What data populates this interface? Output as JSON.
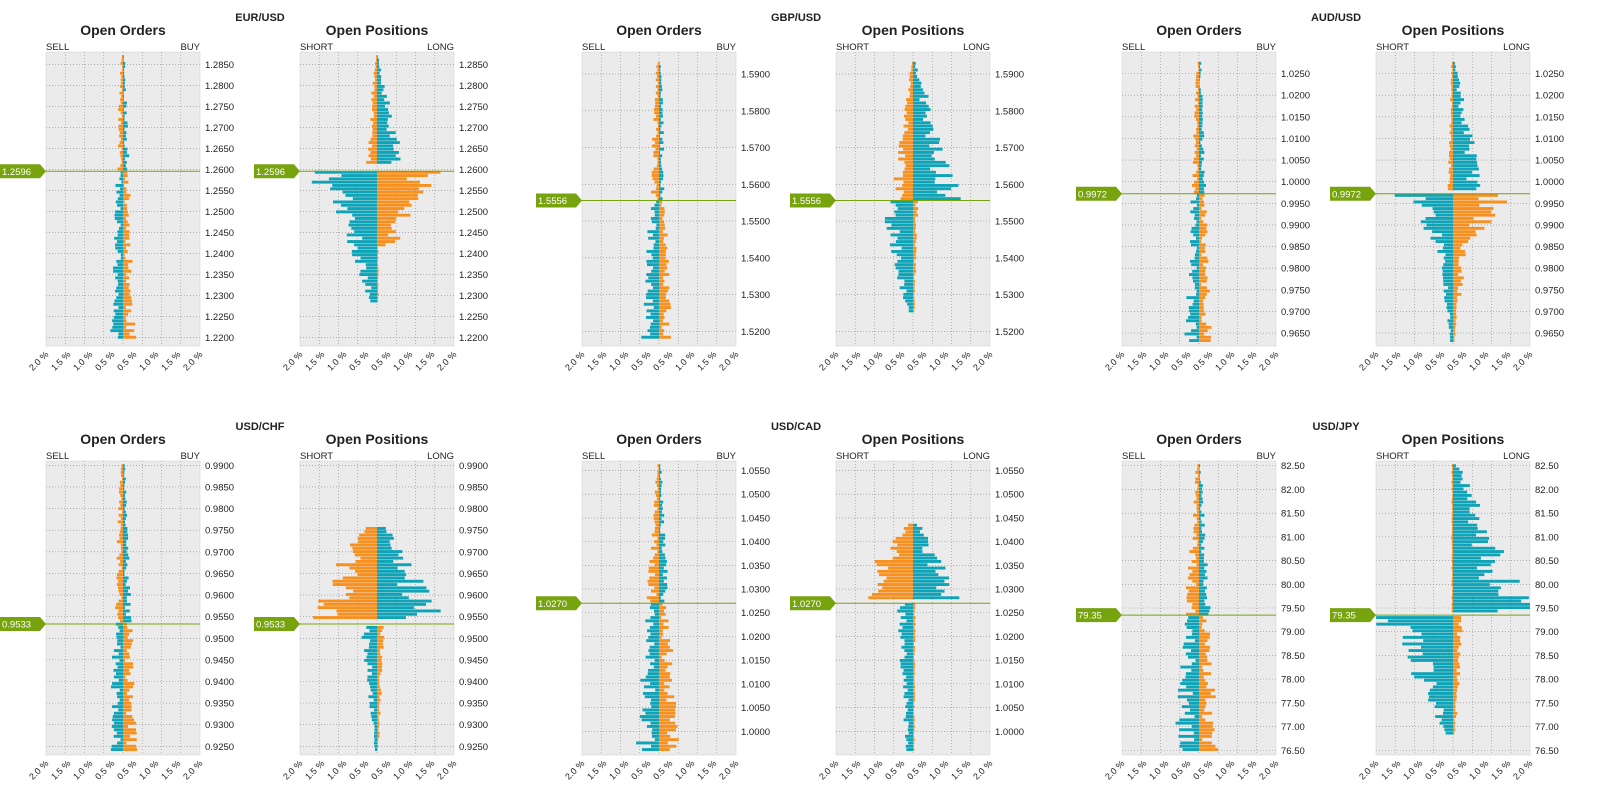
{
  "colors": {
    "sell": "#f7901e",
    "buy": "#0fa3b8",
    "current": "#76a30e",
    "plot_bg": "#ebebeb",
    "grid": "#8a8a8a"
  },
  "chart_data": [
    {
      "pair": "EUR/USD",
      "current_price": "1.2596",
      "type": "bar",
      "orders": {
        "title": "Open Orders",
        "left_label": "SELL",
        "right_label": "BUY"
      },
      "positions": {
        "title": "Open Positions",
        "left_label": "SHORT",
        "right_label": "LONG"
      },
      "xlim": [
        -2.0,
        2.0
      ],
      "x_ticks": [
        "2.0 %",
        "1.5 %",
        "1.0 %",
        "0.5 %",
        "0.5 %",
        "1.0 %",
        "1.5 %",
        "2.0 %"
      ],
      "y_ticks": [
        "1.2850",
        "1.2800",
        "1.2750",
        "1.2700",
        "1.2650",
        "1.2600",
        "1.2550",
        "1.2500",
        "1.2450",
        "1.2400",
        "1.2350",
        "1.2300",
        "1.2250",
        "1.2200"
      ],
      "ylim": [
        1.218,
        1.288
      ],
      "current": 1.2596,
      "order_sell": [
        [
          1.287,
          1.22,
          0.05,
          0.22
        ]
      ],
      "order_buy": [
        [
          1.287,
          1.22,
          0.04,
          0.22
        ]
      ],
      "pos_short": [
        [
          1.287,
          1.261,
          0.03,
          0.25
        ],
        [
          1.26,
          1.242,
          1.3,
          0.55
        ],
        [
          1.242,
          1.228,
          0.55,
          0.15
        ]
      ],
      "pos_long": [
        [
          1.287,
          1.261,
          0.03,
          0.55
        ],
        [
          1.26,
          1.242,
          1.2,
          0.35
        ],
        [
          1.242,
          1.228,
          0.03,
          0.03
        ]
      ]
    },
    {
      "pair": "GBP/USD",
      "current_price": "1.5556",
      "type": "bar",
      "orders": {
        "title": "Open Orders",
        "left_label": "SELL",
        "right_label": "BUY"
      },
      "positions": {
        "title": "Open Positions",
        "left_label": "SHORT",
        "right_label": "LONG"
      },
      "xlim": [
        -2.0,
        2.0
      ],
      "x_ticks": [
        "2.0 %",
        "1.5 %",
        "1.0 %",
        "0.5 %",
        "0.5 %",
        "1.0 %",
        "1.5 %",
        "2.0 %"
      ],
      "y_ticks": [
        "1.5900",
        "1.5800",
        "1.5700",
        "1.5600",
        "1.5500",
        "1.5400",
        "1.5300",
        "1.5200"
      ],
      "ylim": [
        1.516,
        1.596
      ],
      "current": 1.5556,
      "order_sell": [
        [
          1.593,
          1.518,
          0.05,
          0.3
        ]
      ],
      "order_buy": [
        [
          1.593,
          1.518,
          0.04,
          0.22
        ]
      ],
      "pos_short": [
        [
          1.593,
          1.556,
          0.03,
          0.4
        ],
        [
          1.556,
          1.525,
          0.6,
          0.15
        ]
      ],
      "pos_long": [
        [
          1.593,
          1.556,
          0.05,
          1.0
        ],
        [
          1.556,
          1.525,
          0.1,
          0.03
        ]
      ]
    },
    {
      "pair": "AUD/USD",
      "current_price": "0.9972",
      "type": "bar",
      "orders": {
        "title": "Open Orders",
        "left_label": "SELL",
        "right_label": "BUY"
      },
      "positions": {
        "title": "Open Positions",
        "left_label": "SHORT",
        "right_label": "LONG"
      },
      "xlim": [
        -2.0,
        2.0
      ],
      "x_ticks": [
        "2.0 %",
        "1.5 %",
        "1.0 %",
        "0.5 %",
        "0.5 %",
        "1.0 %",
        "1.5 %",
        "2.0 %"
      ],
      "y_ticks": [
        "1.0250",
        "1.0200",
        "1.0150",
        "1.0100",
        "1.0050",
        "1.0000",
        "0.9950",
        "0.9900",
        "0.9850",
        "0.9800",
        "0.9750",
        "0.9700",
        "0.9650"
      ],
      "ylim": [
        0.962,
        1.03
      ],
      "current": 0.9972,
      "order_sell": [
        [
          1.028,
          0.963,
          0.05,
          0.25
        ]
      ],
      "order_buy": [
        [
          1.028,
          0.963,
          0.04,
          0.22
        ]
      ],
      "pos_short": [
        [
          1.028,
          0.998,
          0.03,
          0.1
        ],
        [
          0.9975,
          0.985,
          1.2,
          0.3
        ],
        [
          0.985,
          0.963,
          0.3,
          0.05
        ]
      ],
      "pos_long": [
        [
          1.028,
          0.998,
          0.03,
          0.6
        ],
        [
          0.9975,
          0.985,
          1.3,
          0.3
        ],
        [
          0.985,
          0.963,
          0.3,
          0.03
        ]
      ]
    },
    {
      "pair": "USD/CHF",
      "current_price": "0.9533",
      "type": "bar",
      "orders": {
        "title": "Open Orders",
        "left_label": "SELL",
        "right_label": "BUY"
      },
      "positions": {
        "title": "Open Positions",
        "left_label": "SHORT",
        "right_label": "LONG"
      },
      "xlim": [
        -2.0,
        2.0
      ],
      "x_ticks": [
        "2.0 %",
        "1.5 %",
        "1.0 %",
        "0.5 %",
        "0.5 %",
        "1.0 %",
        "1.5 %",
        "2.0 %"
      ],
      "y_ticks": [
        "0.9900",
        "0.9850",
        "0.9800",
        "0.9750",
        "0.9700",
        "0.9650",
        "0.9600",
        "0.9550",
        "0.9500",
        "0.9450",
        "0.9400",
        "0.9350",
        "0.9300",
        "0.9250"
      ],
      "ylim": [
        0.923,
        0.991
      ],
      "current": 0.9533,
      "order_sell": [
        [
          0.99,
          0.924,
          0.05,
          0.25
        ]
      ],
      "order_buy": [
        [
          0.99,
          0.924,
          0.04,
          0.25
        ]
      ],
      "pos_short": [
        [
          0.976,
          0.954,
          0.3,
          1.4
        ],
        [
          0.953,
          0.924,
          0.3,
          0.05
        ]
      ],
      "pos_long": [
        [
          0.976,
          0.954,
          0.2,
          1.3
        ],
        [
          0.953,
          0.924,
          0.15,
          0.03
        ]
      ]
    },
    {
      "pair": "USD/CAD",
      "current_price": "1.0270",
      "type": "bar",
      "orders": {
        "title": "Open Orders",
        "left_label": "SELL",
        "right_label": "BUY"
      },
      "positions": {
        "title": "Open Positions",
        "left_label": "SHORT",
        "right_label": "LONG"
      },
      "xlim": [
        -2.0,
        2.0
      ],
      "x_ticks": [
        "2.0 %",
        "1.5 %",
        "1.0 %",
        "0.5 %",
        "0.5 %",
        "1.0 %",
        "1.5 %",
        "2.0 %"
      ],
      "y_ticks": [
        "1.0550",
        "1.0500",
        "1.0450",
        "1.0400",
        "1.0350",
        "1.0300",
        "1.0250",
        "1.0200",
        "1.0150",
        "1.0100",
        "1.0050",
        "1.0000"
      ],
      "ylim": [
        0.995,
        1.057
      ],
      "current": 1.027,
      "order_sell": [
        [
          1.056,
          0.996,
          0.05,
          0.4
        ]
      ],
      "order_buy": [
        [
          1.056,
          0.996,
          0.04,
          0.35
        ]
      ],
      "pos_short": [
        [
          1.044,
          1.0275,
          0.1,
          1.3
        ],
        [
          1.027,
          0.996,
          0.3,
          0.15
        ]
      ],
      "pos_long": [
        [
          1.044,
          1.0275,
          0.1,
          1.0
        ],
        [
          1.027,
          0.996,
          0.05,
          0.03
        ]
      ]
    },
    {
      "pair": "USD/JPY",
      "current_price": "79.35",
      "type": "bar",
      "orders": {
        "title": "Open Orders",
        "left_label": "SELL",
        "right_label": "BUY"
      },
      "positions": {
        "title": "Open Positions",
        "left_label": "SHORT",
        "right_label": "LONG"
      },
      "xlim": [
        -2.0,
        2.0
      ],
      "x_ticks": [
        "2.0 %",
        "1.5 %",
        "1.0 %",
        "0.5 %",
        "0.5 %",
        "1.0 %",
        "1.5 %",
        "2.0 %"
      ],
      "y_ticks": [
        "82.50",
        "82.00",
        "81.50",
        "81.00",
        "80.50",
        "80.00",
        "79.50",
        "79.00",
        "78.50",
        "78.00",
        "77.50",
        "77.00",
        "76.50"
      ],
      "ylim": [
        76.4,
        82.6
      ],
      "current": 79.35,
      "order_sell": [
        [
          82.55,
          76.45,
          0.05,
          0.45
        ]
      ],
      "order_buy": [
        [
          82.55,
          76.45,
          0.04,
          0.35
        ]
      ],
      "pos_short": [
        [
          82.55,
          79.4,
          0.03,
          0.03
        ],
        [
          79.35,
          76.8,
          1.5,
          0.1
        ]
      ],
      "pos_long": [
        [
          82.55,
          79.4,
          0.1,
          1.5
        ],
        [
          79.35,
          76.8,
          0.2,
          0.05
        ]
      ]
    }
  ]
}
